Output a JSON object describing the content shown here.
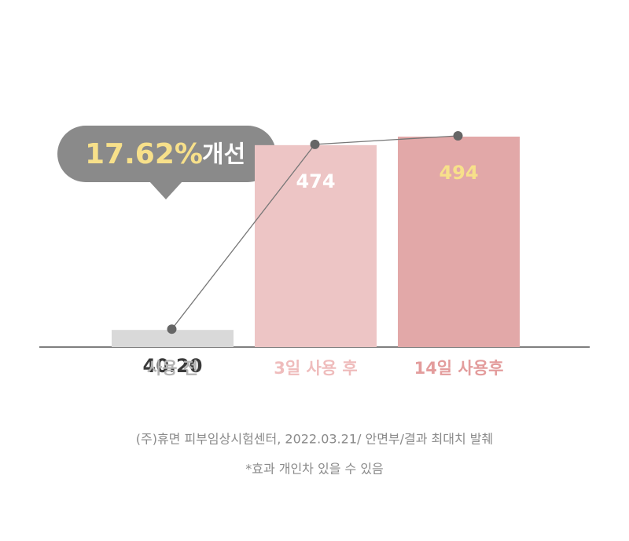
{
  "chart_data": {
    "type": "bar",
    "categories": [
      "사용 전",
      "3일 사용 후",
      "14일 사용후"
    ],
    "values": [
      40.2,
      474,
      494
    ],
    "value_labels": [
      "40.20",
      "474",
      "494"
    ],
    "colors": [
      "#d9d9d9",
      "#edc5c5",
      "#e2a8a8"
    ],
    "category_label_colors": [
      "#b3b3b3",
      "#efbcbc",
      "#e39c9c"
    ],
    "value_label_colors": [
      "#3a3a3a",
      "#ffffff",
      "#f7e08a"
    ],
    "line": true,
    "annotation": {
      "highlight": "17.62%",
      "text": "개선"
    },
    "notes": [
      "(주)휴면 피부임상시험센터, 2022.03.21/ 안면부/결과 최대치 발췌",
      "*효과 개인차 있을 수 있음"
    ]
  }
}
